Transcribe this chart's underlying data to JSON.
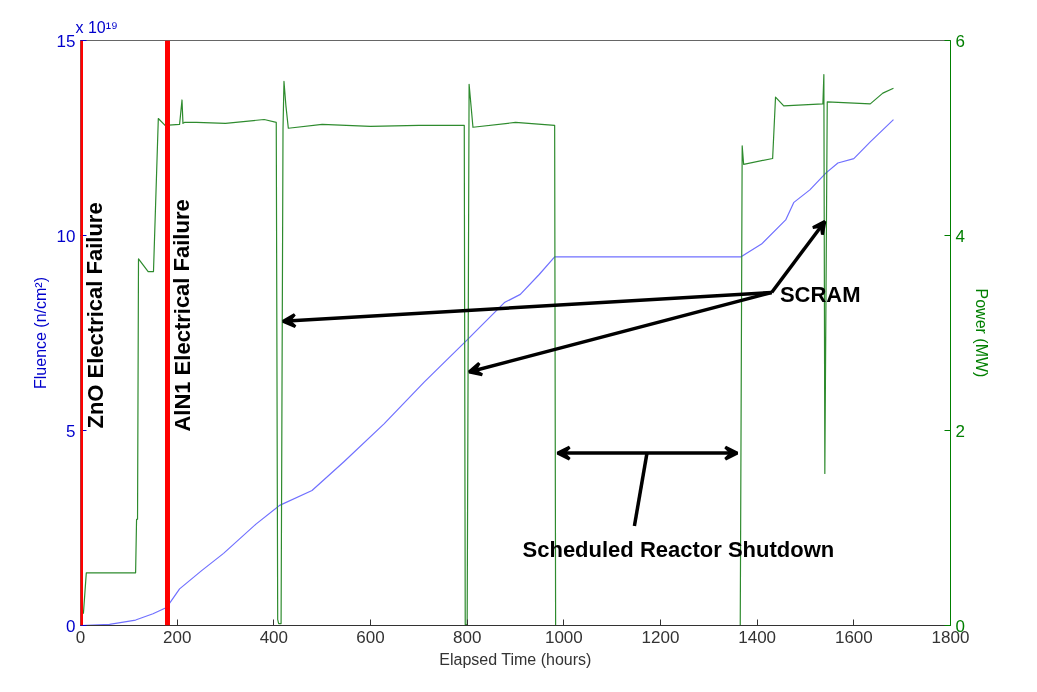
{
  "chart_data": {
    "type": "line",
    "xlabel": "Elapsed Time (hours)",
    "ylabel": "Fluence (n/cm²)",
    "y2label": "Power (MW)",
    "xlim": [
      0,
      1800
    ],
    "xticks": [
      0,
      200,
      400,
      600,
      800,
      1000,
      1200,
      1400,
      1600,
      1800
    ],
    "ylim": [
      0,
      15
    ],
    "yticks": [
      0,
      5,
      10,
      15
    ],
    "y2lim": [
      0,
      6
    ],
    "y2ticks": [
      0,
      2,
      4,
      6
    ],
    "grid": false,
    "marker": "none",
    "line_style": "solid",
    "series": [
      {
        "color": "#7070ff",
        "x": [
          0,
          60,
          114,
          150,
          178,
          205,
          250,
          296,
          363,
          412,
          479,
          545,
          628,
          711,
          799,
          877,
          910,
          949,
          981,
          1366,
          1409,
          1459,
          1476,
          1509,
          1542,
          1567,
          1600,
          1634,
          1682
        ],
        "values": [
          0,
          0.03,
          0.14,
          0.3,
          0.46,
          0.94,
          1.4,
          1.85,
          2.6,
          3.08,
          3.46,
          4.2,
          5.17,
          6.24,
          7.31,
          8.28,
          8.49,
          9.0,
          9.45,
          9.45,
          9.78,
          10.4,
          10.85,
          11.17,
          11.6,
          11.86,
          11.97,
          12.4,
          12.97
        ]
      },
      {
        "color": "#2e8b2e",
        "axis": "y2",
        "x": [
          6,
          12,
          114,
          116,
          118,
          120,
          140,
          151,
          161,
          175,
          205,
          210,
          212,
          215,
          240,
          300,
          380,
          405,
          408,
          410,
          415,
          419,
          421,
          425,
          430,
          500,
          600,
          700,
          794,
          796,
          800,
          804,
          812,
          900,
          981,
          983,
          1365,
          1369,
          1372,
          1432,
          1438,
          1455,
          1536,
          1538,
          1540,
          1545,
          1634,
          1660,
          1682
        ],
        "values": [
          0.12,
          0.54,
          0.54,
          1.09,
          1.09,
          3.76,
          3.63,
          3.63,
          5.2,
          5.13,
          5.14,
          5.39,
          5.15,
          5.16,
          5.16,
          5.15,
          5.19,
          5.16,
          0.06,
          0.02,
          0.02,
          5.1,
          5.58,
          5.33,
          5.1,
          5.14,
          5.12,
          5.13,
          5.13,
          0.01,
          0.01,
          5.55,
          5.11,
          5.16,
          5.13,
          0,
          0,
          4.92,
          4.73,
          4.79,
          5.42,
          5.33,
          5.35,
          5.65,
          1.56,
          5.37,
          5.35,
          5.46,
          5.51
        ]
      }
    ],
    "ref_lines": [
      {
        "axis": "x",
        "value": 0,
        "label": "ZnO Electrical Failure",
        "color": "#ff0000"
      },
      {
        "axis": "x",
        "value": 180,
        "label": "AlN1 Electrical Failure",
        "color": "#ff0000"
      }
    ],
    "annotations": [
      "x 10¹⁹",
      {
        "text": "SCRAM",
        "x": 1540,
        "y": 10.36
      },
      "Scheduled Reactor Shutdown"
    ]
  }
}
